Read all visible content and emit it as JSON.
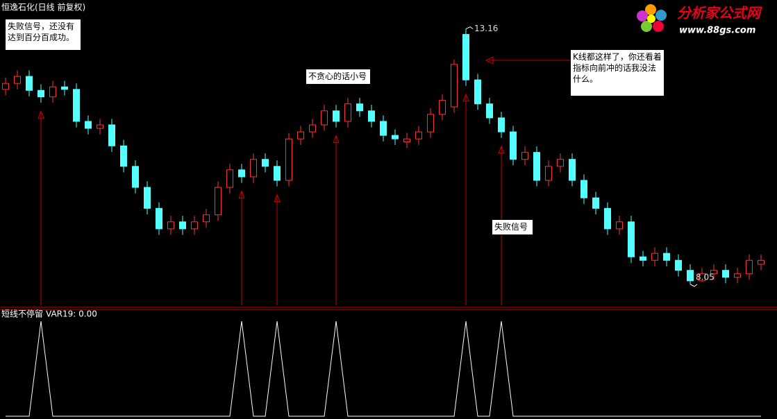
{
  "chart_data": {
    "type": "candlestick",
    "title": "恒逸石化(日线 前复权)",
    "open": [
      11.95,
      12.07,
      12.21,
      11.93,
      11.8,
      12.0,
      11.95,
      11.31,
      11.17,
      11.24,
      10.82,
      10.41,
      9.99,
      9.57,
      9.16,
      9.3,
      9.16,
      9.3,
      9.44,
      9.99,
      10.34,
      10.2,
      10.55,
      10.41,
      10.13,
      10.96,
      11.1,
      11.24,
      11.52,
      11.31,
      11.66,
      11.52,
      11.31,
      11.03,
      10.9,
      10.96,
      11.1,
      11.45,
      11.6,
      13.05,
      12.14,
      11.66,
      11.38,
      11.1,
      10.55,
      10.69,
      10.13,
      10.41,
      10.55,
      10.13,
      9.78,
      9.57,
      9.16,
      9.3,
      8.6,
      8.53,
      8.67,
      8.53,
      8.33,
      8.12,
      8.26,
      8.33,
      8.19,
      8.26,
      8.45
    ],
    "high": [
      12.19,
      12.33,
      12.33,
      12.05,
      12.12,
      12.12,
      12.07,
      11.43,
      11.36,
      11.36,
      10.94,
      10.53,
      10.11,
      9.69,
      9.42,
      9.42,
      9.42,
      9.56,
      10.11,
      10.46,
      10.46,
      10.67,
      10.67,
      10.53,
      11.08,
      11.22,
      11.36,
      11.64,
      11.64,
      11.78,
      11.78,
      11.64,
      11.43,
      11.15,
      11.08,
      11.22,
      11.57,
      11.85,
      12.55,
      13.16,
      12.26,
      11.78,
      11.5,
      11.22,
      10.81,
      10.81,
      10.53,
      10.67,
      10.67,
      10.25,
      9.9,
      9.69,
      9.42,
      9.42,
      8.72,
      8.79,
      8.79,
      8.65,
      8.45,
      8.38,
      8.45,
      8.45,
      8.38,
      8.65,
      8.65
    ],
    "low": [
      11.83,
      11.95,
      11.81,
      11.68,
      11.68,
      11.83,
      11.19,
      11.05,
      11.05,
      10.7,
      10.29,
      9.87,
      9.45,
      9.04,
      9.04,
      9.04,
      9.04,
      9.18,
      9.32,
      9.87,
      10.08,
      10.08,
      10.29,
      10.01,
      10.01,
      10.84,
      10.98,
      11.12,
      11.19,
      11.19,
      11.4,
      11.19,
      10.91,
      10.84,
      10.78,
      10.84,
      10.98,
      11.33,
      11.48,
      12.02,
      11.54,
      11.26,
      10.98,
      10.43,
      10.43,
      10.01,
      10.01,
      10.29,
      10.01,
      9.66,
      9.45,
      9.04,
      9.04,
      8.48,
      8.41,
      8.41,
      8.41,
      8.21,
      8.05,
      8.1,
      8.14,
      8.07,
      8.07,
      8.14,
      8.33
    ],
    "close": [
      12.07,
      12.21,
      11.93,
      11.8,
      12.0,
      11.95,
      11.31,
      11.17,
      11.24,
      10.82,
      10.41,
      9.99,
      9.57,
      9.16,
      9.3,
      9.16,
      9.3,
      9.44,
      9.99,
      10.34,
      10.2,
      10.55,
      10.41,
      10.13,
      10.96,
      11.1,
      11.24,
      11.52,
      11.31,
      11.66,
      11.52,
      11.31,
      11.03,
      10.96,
      10.96,
      11.1,
      11.45,
      11.73,
      12.45,
      12.14,
      11.66,
      11.38,
      11.1,
      10.55,
      10.69,
      10.13,
      10.41,
      10.55,
      10.13,
      9.78,
      9.57,
      9.16,
      9.3,
      8.6,
      8.53,
      8.67,
      8.53,
      8.33,
      8.12,
      8.26,
      8.33,
      8.19,
      8.26,
      8.53,
      8.53
    ],
    "up_color": "#ff3232",
    "down_color": "#54ffff",
    "signal_color": "#c80000",
    "ylim": [
      7.59,
      13.53
    ],
    "annotations": [
      {
        "lines": [
          "失败信号，还没有",
          "达到百分百成功。"
        ]
      },
      {
        "lines": [
          "不贪心的话小号"
        ]
      },
      {
        "lines": [
          "K线都这样了，你还看着",
          "指标向前冲的话我没法",
          "什么。"
        ]
      },
      {
        "lines": [
          "失败信号"
        ]
      }
    ],
    "indicator": {
      "type": "line",
      "title": "短线不停留",
      "label": "VAR19: 0.00",
      "color": "#ffffff",
      "ylim": [
        0,
        1
      ],
      "values": [
        0,
        0,
        0,
        1,
        0,
        0,
        0,
        0,
        0,
        0,
        0,
        0,
        0,
        0,
        0,
        0,
        0,
        0,
        0,
        0,
        1,
        0,
        0,
        1,
        0,
        0,
        0,
        0,
        1,
        0,
        0,
        0,
        0,
        0,
        0,
        0,
        0,
        0,
        0,
        1,
        0,
        0,
        1,
        0,
        0,
        0,
        0,
        0,
        0,
        0,
        0,
        0,
        0,
        0,
        0,
        0,
        0,
        0,
        0,
        0,
        0,
        0,
        0,
        0,
        0
      ]
    }
  },
  "logo": {
    "name": "分析家公式网",
    "url": "www.88gs.com"
  }
}
